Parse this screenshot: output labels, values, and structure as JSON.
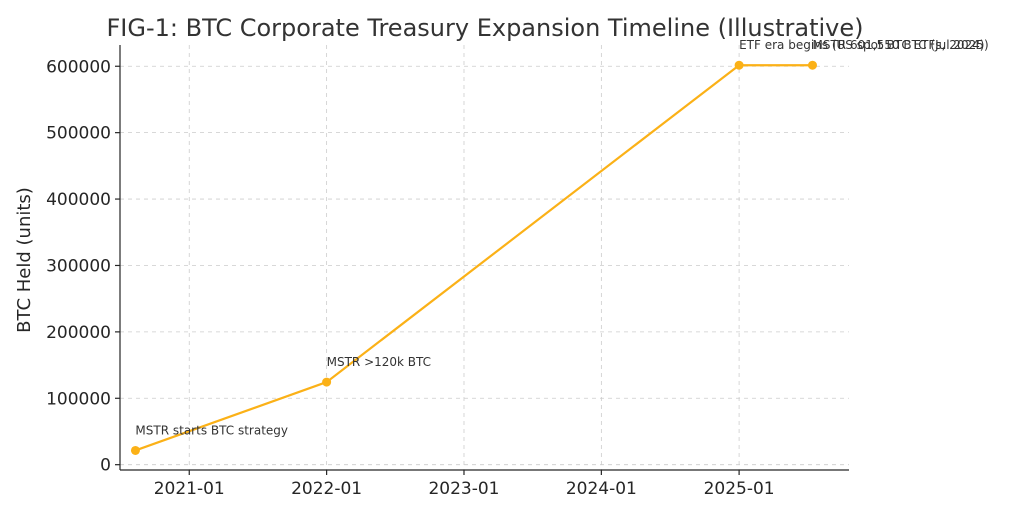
{
  "chart_data": {
    "type": "line",
    "title": "FIG-1: BTC Corporate Treasury Expansion Timeline (Illustrative)",
    "xlabel": "",
    "ylabel": "BTC Held (units)",
    "x_type": "date",
    "xlim": [
      "2020-07-01",
      "2025-10-20"
    ],
    "ylim": [
      -8000,
      632000
    ],
    "xticks": [
      "2021-01-01",
      "2022-01-01",
      "2023-01-01",
      "2024-01-01",
      "2025-01-01"
    ],
    "xtick_labels": [
      "2021-01",
      "2022-01",
      "2023-01",
      "2024-01",
      "2025-01"
    ],
    "yticks": [
      0,
      100000,
      200000,
      300000,
      400000,
      500000,
      600000
    ],
    "ytick_labels": [
      "0",
      "100000",
      "200000",
      "300000",
      "400000",
      "500000",
      "600000"
    ],
    "grid": true,
    "legend": false,
    "series": [
      {
        "color": "#FBB117",
        "marker": "circle",
        "points": [
          {
            "x": "2020-08-11",
            "y": 21454
          },
          {
            "x": "2022-01-01",
            "y": 124391
          },
          {
            "x": "2025-01-01",
            "y": 601550
          },
          {
            "x": "2025-07-15",
            "y": 601550
          }
        ]
      }
    ],
    "annotations": [
      {
        "x": "2020-08-11",
        "y": 21454,
        "text": "MSTR starts BTC strategy"
      },
      {
        "x": "2022-01-01",
        "y": 124391,
        "text": "MSTR >120k BTC"
      },
      {
        "x": "2025-01-01",
        "y": 601550,
        "text": "ETF era begins (US spot BTC ETFs, 2024)"
      },
      {
        "x": "2025-07-15",
        "y": 601550,
        "text": "MSTR 601,550 BTC (Jul 2025)"
      }
    ]
  }
}
